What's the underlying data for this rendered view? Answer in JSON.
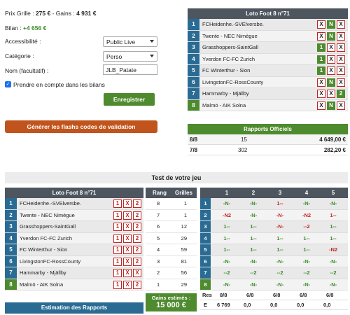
{
  "summary": {
    "prix_label": "Prix Grille :",
    "prix_value": "275 €",
    "gains_label": "- Gains :",
    "gains_value": "4 931 €",
    "bilan_label": "Bilan :",
    "bilan_value": "+4 656 €"
  },
  "form": {
    "accessibilite_label": "Accessibilité :",
    "accessibilite_value": "Public Live",
    "categorie_label": "Catégorie :",
    "categorie_value": "Perso",
    "nom_label": "Nom (facultatif) :",
    "nom_value": "JLB_Patate",
    "bilans_check_label": "Prendre en compte dans les bilans",
    "enregistrer_label": "Enregistrer",
    "generer_label": "Génèrer les flashs codes de validation"
  },
  "match_table": {
    "title": "Loto Foot 8 n°71",
    "rows": [
      {
        "num": "1",
        "name": "FCHeidenhe.-SVElversbe.",
        "c1": "X",
        "c2": "N",
        "c3": "X",
        "sel": 0
      },
      {
        "num": "2",
        "name": "Twente - NEC Nimègue",
        "c1": "X",
        "c2": "N",
        "c3": "X",
        "sel": 0
      },
      {
        "num": "3",
        "name": "Grasshoppers-SaintGall",
        "c1": "1",
        "c2": "X",
        "c3": "X",
        "sel": 1
      },
      {
        "num": "4",
        "name": "Yverdon FC-FC Zurich",
        "c1": "1",
        "c2": "X",
        "c3": "X",
        "sel": 1
      },
      {
        "num": "5",
        "name": "FC Winterthur - Sion",
        "c1": "1",
        "c2": "X",
        "c3": "X",
        "sel": 1
      },
      {
        "num": "6",
        "name": "LivingstonFC-RossCounty",
        "c1": "X",
        "c2": "N",
        "c3": "X",
        "sel": 0
      },
      {
        "num": "7",
        "name": "Hammarby - Mjällby",
        "c1": "X",
        "c2": "X",
        "c3": "2",
        "sel": 3
      },
      {
        "num": "8",
        "name": "Malmö - AIK Solna",
        "c1": "X",
        "c2": "N",
        "c3": "X",
        "sel": 0
      }
    ]
  },
  "rapports": {
    "title": "Rapports Officiels",
    "rows": [
      {
        "rang": "8/8",
        "n": "15",
        "val": "4 649,00 €"
      },
      {
        "rang": "7/8",
        "n": "302",
        "val": "282,20 €"
      }
    ]
  },
  "test": {
    "title": "Test de votre jeu",
    "left_title": "Loto Foot 8 n°71",
    "left_rows": [
      {
        "num": "1",
        "name": "FCHeidenhe.-SVElversbe.",
        "c1": "1",
        "c2": "X",
        "c3": "2"
      },
      {
        "num": "2",
        "name": "Twente - NEC Nimègue",
        "c1": "1",
        "c2": "X",
        "c3": "2"
      },
      {
        "num": "3",
        "name": "Grasshoppers-SaintGall",
        "c1": "1",
        "c2": "X",
        "c3": "2"
      },
      {
        "num": "4",
        "name": "Yverdon FC-FC Zurich",
        "c1": "1",
        "c2": "X",
        "c3": "2"
      },
      {
        "num": "5",
        "name": "FC Winterthur - Sion",
        "c1": "1",
        "c2": "X",
        "c3": "2"
      },
      {
        "num": "6",
        "name": "LivingstonFC-RossCounty",
        "c1": "1",
        "c2": "X",
        "c3": "2"
      },
      {
        "num": "7",
        "name": "Hammarby - Mjällby",
        "c1": "1",
        "c2": "X",
        "c3": "X"
      },
      {
        "num": "8",
        "name": "Malmö - AIK Solna",
        "c1": "1",
        "c2": "X",
        "c3": "2"
      }
    ],
    "rang_header": "Rang",
    "grilles_header": "Grilles",
    "rang_rows": [
      {
        "rang": "8",
        "g": "1"
      },
      {
        "rang": "7",
        "g": "1"
      },
      {
        "rang": "6",
        "g": "12"
      },
      {
        "rang": "5",
        "g": "29"
      },
      {
        "rang": "4",
        "g": "59"
      },
      {
        "rang": "3",
        "g": "81"
      },
      {
        "rang": "2",
        "g": "56"
      },
      {
        "rang": "1",
        "g": "29"
      }
    ],
    "gains_label": "Gains estimés :",
    "gains_value": "15 000 €",
    "grid_headers": [
      "1",
      "2",
      "3",
      "4",
      "5"
    ],
    "grid_rows": [
      {
        "num": "1",
        "cells": [
          "-N-",
          "-N-",
          "1--",
          "-N-",
          "-N-"
        ]
      },
      {
        "num": "2",
        "cells": [
          "-N2",
          "-N-",
          "-N-",
          "-N2",
          "1--"
        ]
      },
      {
        "num": "3",
        "cells": [
          "1--",
          "1--",
          "-N-",
          "--2",
          "1--"
        ]
      },
      {
        "num": "4",
        "cells": [
          "1--",
          "1--",
          "1--",
          "1--",
          "1--"
        ]
      },
      {
        "num": "5",
        "cells": [
          "1--",
          "1--",
          "1--",
          "1--",
          "-N2"
        ]
      },
      {
        "num": "6",
        "cells": [
          "-N-",
          "-N-",
          "-N-",
          "-N-",
          "-N-"
        ]
      },
      {
        "num": "7",
        "cells": [
          "--2",
          "--2",
          "--2",
          "--2",
          "--2"
        ]
      },
      {
        "num": "8",
        "cells": [
          "-N-",
          "-N-",
          "-N-",
          "-N-",
          "-N-"
        ]
      }
    ],
    "res_label": "Res",
    "res_values": [
      "8/8",
      "6/8",
      "6/8",
      "6/8",
      "6/8"
    ],
    "e_label": "E",
    "e_values": [
      "6 769",
      "0,0",
      "0,0",
      "0,0",
      "0,0"
    ],
    "estimation_label": "Estimation des Rapports"
  },
  "colors": {
    "dark_header": "#4d555e",
    "blue": "#2a6b94",
    "green": "#4e8a2e",
    "red": "#c12525",
    "orange": "#c0541c"
  }
}
